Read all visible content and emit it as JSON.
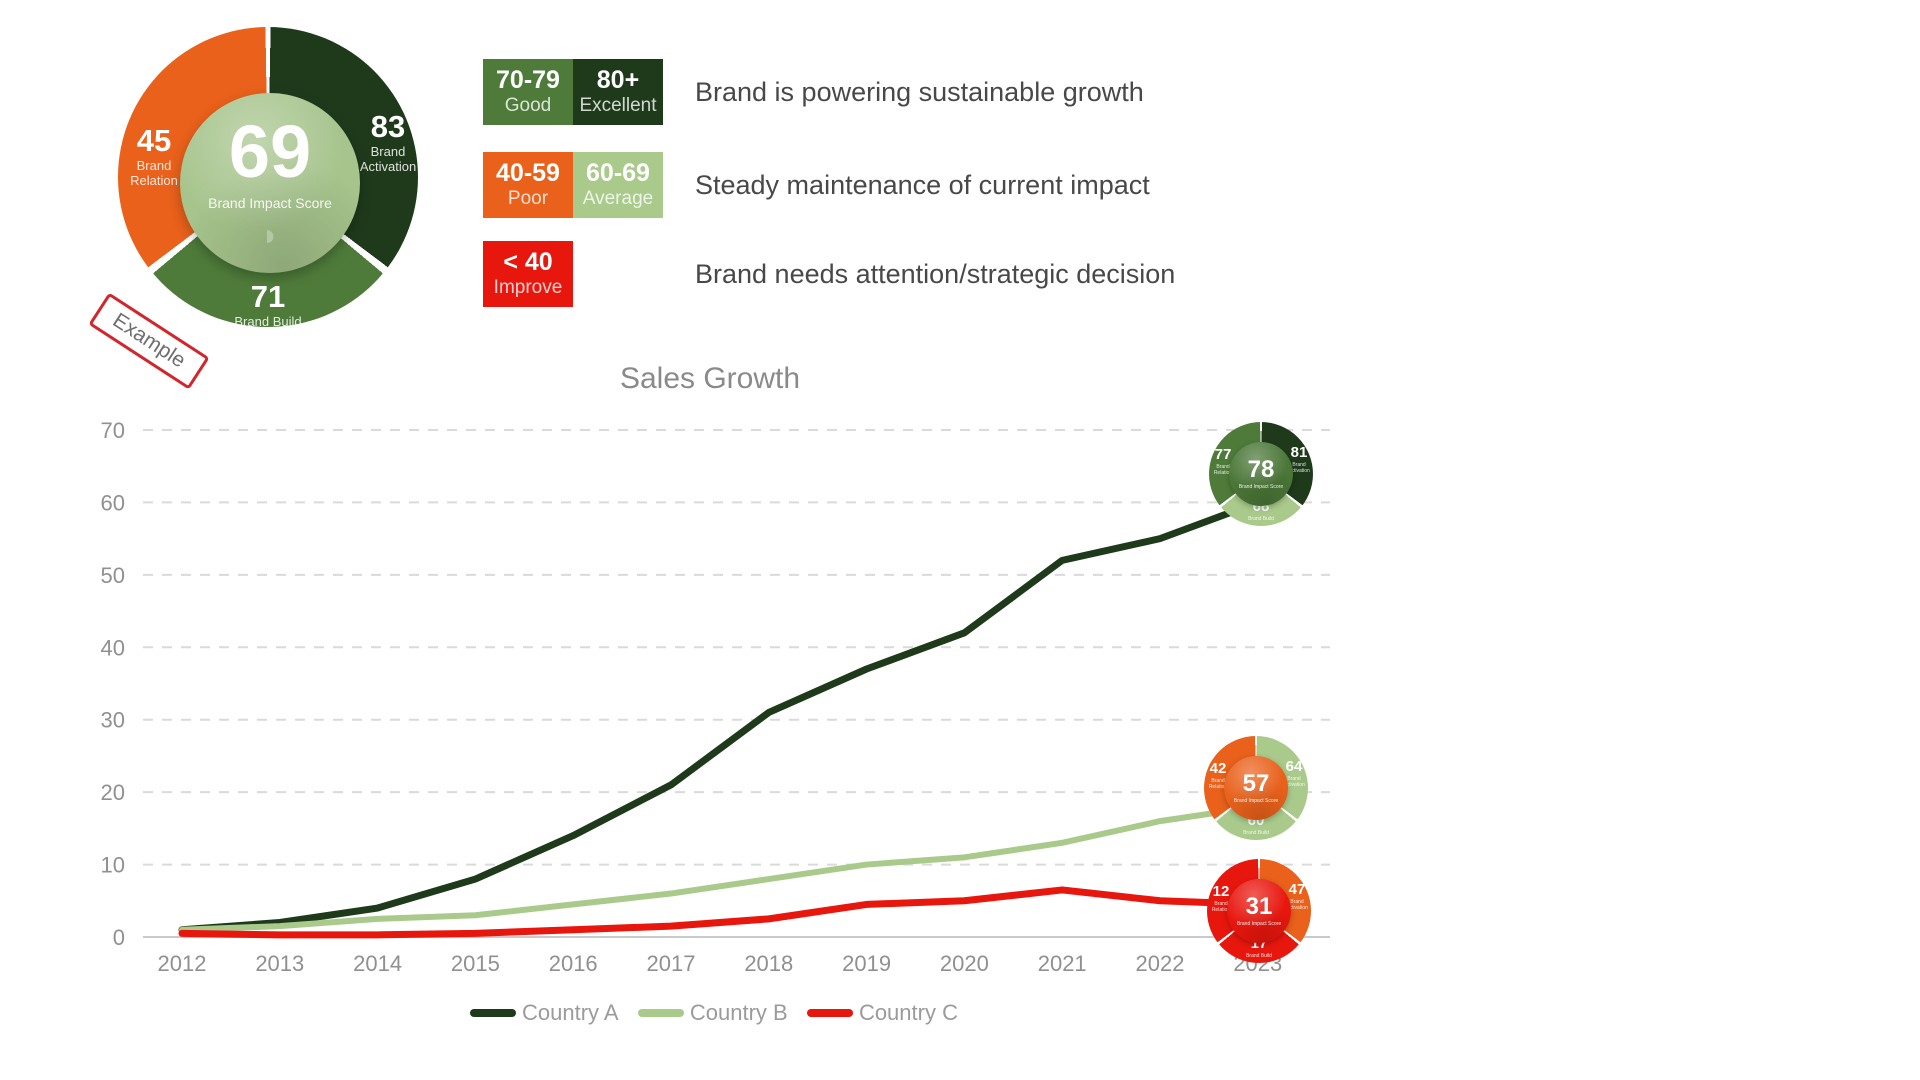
{
  "stamp": {
    "text": "Example"
  },
  "colors": {
    "excellent": "#1e3a1b",
    "good": "#4e7b3a",
    "average": "#a9ca8b",
    "poor": "#e9611b",
    "improve": "#e8170e",
    "grid": "#dadada",
    "axis_text": "#909090"
  },
  "score_legend": [
    {
      "boxes": [
        {
          "range": "70-79",
          "label": "Good",
          "color": "#4e7b3a"
        },
        {
          "range": "80+",
          "label": "Excellent",
          "color": "#1e3a1b"
        }
      ],
      "description": "Brand is powering sustainable growth"
    },
    {
      "boxes": [
        {
          "range": "40-59",
          "label": "Poor",
          "color": "#e9611b"
        },
        {
          "range": "60-69",
          "label": "Average",
          "color": "#a9ca8b"
        }
      ],
      "description": "Steady maintenance of current impact"
    },
    {
      "boxes": [
        {
          "range": "< 40",
          "label": "Improve",
          "color": "#e8170e"
        }
      ],
      "description": "Brand needs attention/strategic decision"
    }
  ],
  "example_donut": {
    "center_value": "69",
    "center_label": "Brand Impact Score",
    "center_color": "#a6c48c",
    "logo_glyph": "◗",
    "left": {
      "value": "45",
      "label": "Brand Relation",
      "color": "#e9611b"
    },
    "right": {
      "value": "83",
      "label": "Brand Activation",
      "color": "#1e3a1b"
    },
    "bottom": {
      "value": "71",
      "label": "Brand Build",
      "color": "#4e7b3a"
    }
  },
  "mini_donuts": [
    {
      "at_series": "Country A",
      "center_value": "78",
      "center_label": "Brand Impact Score",
      "center_color": "#4a7637",
      "left": {
        "value": "77",
        "label": "Brand Relation",
        "color": "#4e7b3a"
      },
      "right": {
        "value": "81",
        "label": "Brand Activation",
        "color": "#1e3a1b"
      },
      "bottom": {
        "value": "68",
        "label": "Brand Build",
        "color": "#a9ca8b"
      }
    },
    {
      "at_series": "Country B",
      "center_value": "57",
      "center_label": "Brand Impact Score",
      "center_color": "#e9611b",
      "left": {
        "value": "42",
        "label": "Brand Relation",
        "color": "#e9611b"
      },
      "right": {
        "value": "64",
        "label": "Brand Activation",
        "color": "#a9ca8b"
      },
      "bottom": {
        "value": "60",
        "label": "Brand Build",
        "color": "#a9ca8b"
      }
    },
    {
      "at_series": "Country C",
      "center_value": "31",
      "center_label": "Brand Impact Score",
      "center_color": "#e8170e",
      "left": {
        "value": "12",
        "label": "Brand Relation",
        "color": "#e8170e"
      },
      "right": {
        "value": "47",
        "label": "Brand Activation",
        "color": "#e9611b"
      },
      "bottom": {
        "value": "17",
        "label": "Brand Build",
        "color": "#e8170e"
      }
    }
  ],
  "chart_data": {
    "type": "line",
    "title": "Sales Growth",
    "categories": [
      "2012",
      "2013",
      "2014",
      "2015",
      "2016",
      "2017",
      "2018",
      "2019",
      "2020",
      "2021",
      "2022",
      "2023"
    ],
    "series": [
      {
        "name": "Country A",
        "color": "#1e3a1b",
        "values": [
          1,
          2,
          4,
          8,
          14,
          21,
          31,
          37,
          42,
          52,
          55,
          60
        ]
      },
      {
        "name": "Country B",
        "color": "#a9ca8b",
        "values": [
          1,
          1.5,
          2.5,
          3,
          4.5,
          6,
          8,
          10,
          11,
          13,
          16,
          18
        ]
      },
      {
        "name": "Country C",
        "color": "#e8170e",
        "values": [
          0.5,
          0.3,
          0.3,
          0.5,
          1,
          1.5,
          2.5,
          4.5,
          5,
          6.5,
          5,
          4.5
        ]
      }
    ],
    "xlabel": "",
    "ylabel": "",
    "ylim": [
      0,
      70
    ],
    "yticks": [
      0,
      10,
      20,
      30,
      40,
      50,
      60,
      70
    ],
    "grid": "horizontal dashed",
    "legend_position": "bottom"
  }
}
